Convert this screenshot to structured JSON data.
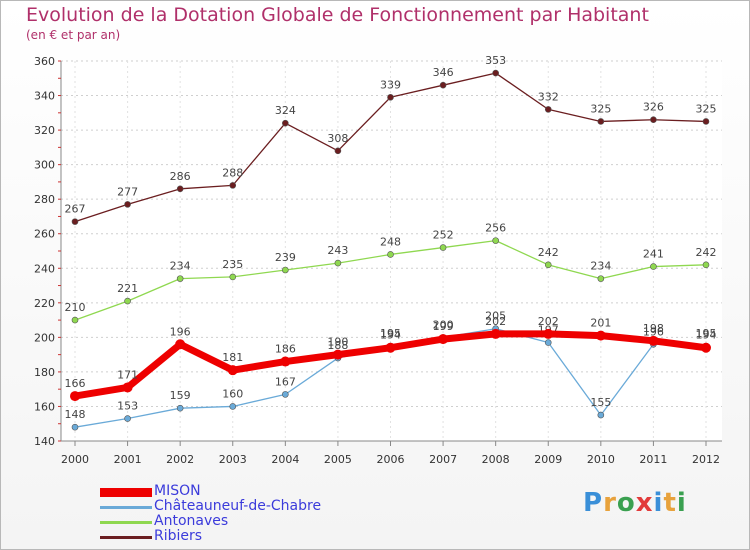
{
  "title": "Evolution de la Dotation Globale de Fonctionnement par Habitant",
  "subtitle": "(en € et par an)",
  "logo": {
    "text": "Proxiti",
    "colors": [
      "#3a8fd8",
      "#e8a23c",
      "#3aa050",
      "#e23b3b",
      "#3a8fd8",
      "#e8a23c",
      "#3aa050"
    ]
  },
  "chart_data": {
    "type": "line",
    "x": [
      "2000",
      "2001",
      "2002",
      "2003",
      "2004",
      "2005",
      "2006",
      "2007",
      "2008",
      "2009",
      "2010",
      "2011",
      "2012"
    ],
    "ylim": [
      140,
      360
    ],
    "yticks": [
      140,
      160,
      180,
      200,
      220,
      240,
      260,
      280,
      300,
      320,
      340,
      360
    ],
    "grid": true,
    "legend_position": "bottom-left",
    "series": [
      {
        "name": "MISON",
        "color": "#ee0000",
        "values": [
          166,
          171,
          196,
          181,
          186,
          190,
          194,
          199,
          202,
          202,
          201,
          198,
          194
        ]
      },
      {
        "name": "Châteauneuf-de-Chabre",
        "color": "#6aaad8",
        "values": [
          148,
          153,
          159,
          160,
          167,
          188,
          195,
          200,
          205,
          197,
          155,
          196,
          195
        ]
      },
      {
        "name": "Antonaves",
        "color": "#8fd850",
        "values": [
          210,
          221,
          234,
          235,
          239,
          243,
          248,
          252,
          256,
          242,
          234,
          241,
          242
        ]
      },
      {
        "name": "Ribiers",
        "color": "#6b1e20",
        "values": [
          267,
          277,
          286,
          288,
          324,
          308,
          339,
          346,
          353,
          332,
          325,
          326,
          325
        ]
      }
    ]
  }
}
